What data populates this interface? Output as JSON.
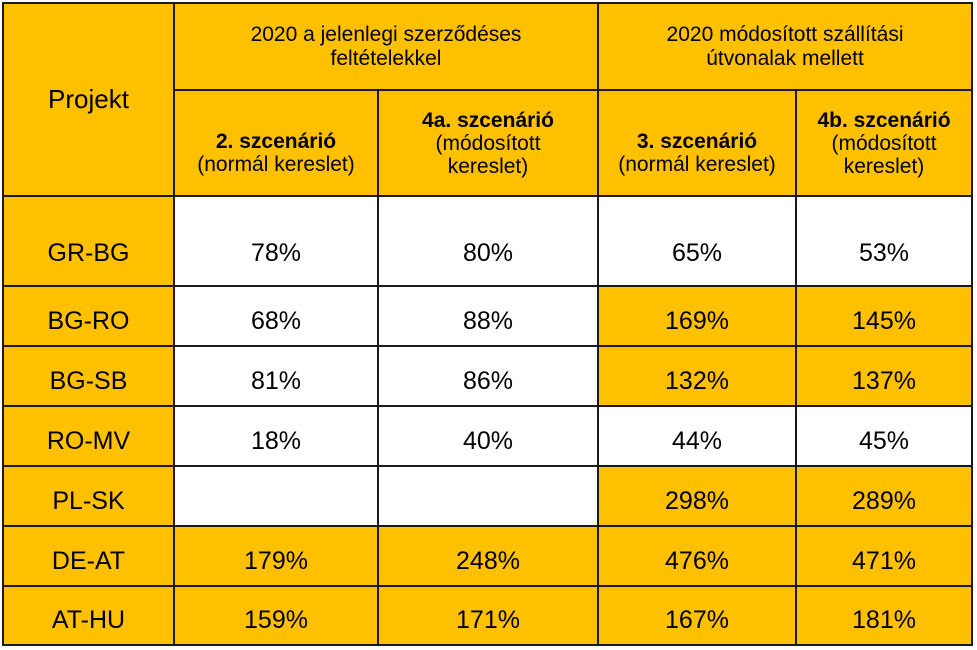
{
  "header": {
    "project_label": "Projekt",
    "group1": {
      "line1": "2020 a jelenlegi szerződéses",
      "line2": "feltételekkel"
    },
    "group2": {
      "line1": "2020 módosított szállítási",
      "line2": "útvonalak mellett"
    },
    "scenarios": [
      {
        "title": "2. szcenárió",
        "desc1": "(normál kereslet)",
        "desc2": ""
      },
      {
        "title": "4a. szcenárió",
        "desc1": "(módosított",
        "desc2": "kereslet)"
      },
      {
        "title": "3. szcenárió",
        "desc1": "(normál kereslet)",
        "desc2": ""
      },
      {
        "title": "4b. szcenárió",
        "desc1": "(módosított",
        "desc2": "kereslet)"
      }
    ]
  },
  "rows": [
    {
      "project": "GR-BG",
      "values": [
        "78%",
        "80%",
        "65%",
        "53%"
      ]
    },
    {
      "project": "BG-RO",
      "values": [
        "68%",
        "88%",
        "169%",
        "145%"
      ]
    },
    {
      "project": "BG-SB",
      "values": [
        "81%",
        "86%",
        "132%",
        "137%"
      ]
    },
    {
      "project": "RO-MV",
      "values": [
        "18%",
        "40%",
        "44%",
        "45%"
      ]
    },
    {
      "project": "PL-SK",
      "values": [
        "",
        "",
        "298%",
        "289%"
      ]
    },
    {
      "project": "DE-AT",
      "values": [
        "179%",
        "248%",
        "476%",
        "471%"
      ]
    },
    {
      "project": "AT-HU",
      "values": [
        "159%",
        "171%",
        "167%",
        "181%"
      ]
    }
  ],
  "colors": {
    "highlight": "#ffc000",
    "plain": "#ffffff",
    "border": "#1a1a1a"
  }
}
